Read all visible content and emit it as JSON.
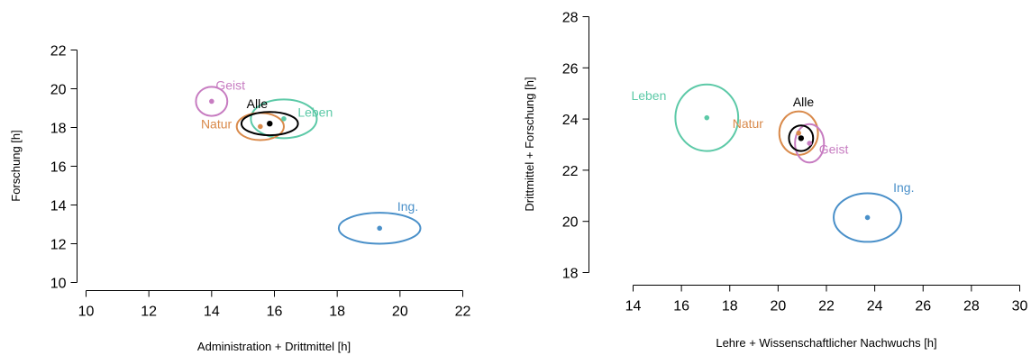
{
  "chart_data": [
    {
      "type": "scatter",
      "title": "",
      "xlabel": "Administration + Drittmittel [h]",
      "ylabel": "Forschung [h]",
      "xlim": [
        10,
        22
      ],
      "ylim": [
        10,
        22
      ],
      "xticks": [
        "10",
        "12",
        "14",
        "16",
        "18",
        "20",
        "22"
      ],
      "yticks": [
        "10",
        "12",
        "14",
        "16",
        "18",
        "20",
        "22"
      ],
      "grid": false,
      "series": [
        {
          "name": "Geist",
          "color": "#c77cc1",
          "x": 14.0,
          "y": 19.35,
          "rx": 0.5,
          "ry": 0.75,
          "label_dx": 0.6,
          "label_dy": 0.6
        },
        {
          "name": "Leben",
          "color": "#5cc9a7",
          "x": 16.3,
          "y": 18.45,
          "rx": 1.05,
          "ry": 1.0,
          "label_dx": 1.0,
          "label_dy": 0.1
        },
        {
          "name": "Natur",
          "color": "#d98a4b",
          "x": 15.55,
          "y": 18.05,
          "rx": 0.75,
          "ry": 0.7,
          "label_dx": -1.4,
          "label_dy": -0.1
        },
        {
          "name": "Alle",
          "color": "#000000",
          "x": 15.85,
          "y": 18.2,
          "rx": 0.9,
          "ry": 0.6,
          "label_dx": -0.4,
          "label_dy": 0.8
        },
        {
          "name": "Ing.",
          "color": "#4a90c9",
          "x": 19.35,
          "y": 12.8,
          "rx": 1.3,
          "ry": 0.8,
          "label_dx": 0.9,
          "label_dy": 0.9
        }
      ]
    },
    {
      "type": "scatter",
      "title": "",
      "xlabel": "Lehre + Wissenschaftlicher Nachwuchs [h]",
      "ylabel": "Drittmittel + Forschung [h]",
      "xlim": [
        14,
        30
      ],
      "ylim": [
        18,
        28
      ],
      "xticks": [
        "14",
        "16",
        "18",
        "20",
        "22",
        "24",
        "26",
        "28",
        "30"
      ],
      "yticks": [
        "18",
        "20",
        "22",
        "24",
        "26",
        "28"
      ],
      "grid": false,
      "series": [
        {
          "name": "Leben",
          "color": "#5cc9a7",
          "x": 17.05,
          "y": 24.05,
          "rx": 1.3,
          "ry": 1.3,
          "label_dx": -2.4,
          "label_dy": 0.7
        },
        {
          "name": "Natur",
          "color": "#d98a4b",
          "x": 20.85,
          "y": 23.45,
          "rx": 0.8,
          "ry": 0.85,
          "label_dx": -2.1,
          "label_dy": 0.2
        },
        {
          "name": "Geist",
          "color": "#c77cc1",
          "x": 21.3,
          "y": 23.05,
          "rx": 0.6,
          "ry": 0.75,
          "label_dx": 1.0,
          "label_dy": -0.4
        },
        {
          "name": "Alle",
          "color": "#000000",
          "x": 20.95,
          "y": 23.25,
          "rx": 0.5,
          "ry": 0.5,
          "label_dx": 0.1,
          "label_dy": 1.25
        },
        {
          "name": "Ing.",
          "color": "#4a90c9",
          "x": 23.7,
          "y": 20.15,
          "rx": 1.4,
          "ry": 0.95,
          "label_dx": 1.5,
          "label_dy": 1.0
        }
      ]
    }
  ]
}
